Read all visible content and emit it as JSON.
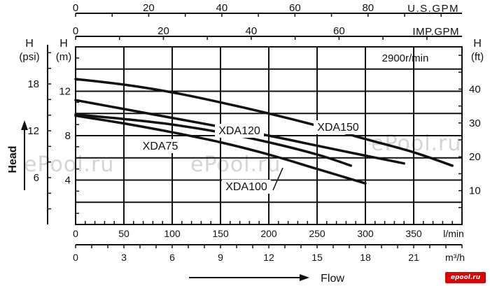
{
  "watermarks": [
    "ePool.ru",
    "ePool.ru",
    "ePool.ru",
    "ePool.ru"
  ],
  "logo": "epool.ru",
  "chart_data": {
    "type": "line",
    "speed_label": "2900r/min",
    "y_title": "Head",
    "x_title": "Flow",
    "axes": {
      "lmin": {
        "unit": "l/min",
        "ticks": [
          0,
          50,
          100,
          150,
          200,
          250,
          300,
          350
        ],
        "range": [
          0,
          400
        ]
      },
      "m3h": {
        "unit": "m³/h",
        "ticks": [
          0,
          3,
          6,
          9,
          12,
          15,
          18,
          21
        ],
        "range": [
          0,
          24
        ]
      },
      "usgpm": {
        "unit": "U.S.GPM",
        "ticks": [
          0,
          20,
          40,
          60,
          80
        ],
        "range": [
          0,
          105.7
        ]
      },
      "impgpm": {
        "unit": "IMP.GPM",
        "ticks": [
          0,
          20,
          40,
          60
        ],
        "range": [
          0,
          88
        ]
      },
      "head_m": {
        "label": "H",
        "unit": "(m)",
        "ticks": [
          4,
          8,
          12
        ],
        "range": [
          0,
          16
        ]
      },
      "head_psi": {
        "label": "H",
        "unit": "(psi)",
        "ticks": [
          6,
          12,
          18
        ],
        "range": [
          0,
          22.75
        ]
      },
      "head_ft": {
        "label": "H",
        "unit": "(ft)",
        "ticks": [
          10,
          20,
          30,
          40
        ],
        "range": [
          0,
          52.5
        ]
      }
    },
    "series": [
      {
        "name": "XDA150",
        "x": [
          0,
          50,
          100,
          150,
          200,
          250,
          300,
          350,
          390
        ],
        "y": [
          13.1,
          12.6,
          11.9,
          11.0,
          10.0,
          8.9,
          7.7,
          6.5,
          5.3
        ]
      },
      {
        "name": "XDA120",
        "x": [
          0,
          50,
          100,
          150,
          200,
          250,
          300,
          340
        ],
        "y": [
          11.2,
          10.4,
          9.6,
          8.8,
          8.0,
          7.1,
          6.2,
          5.5
        ]
      },
      {
        "name": "XDA100",
        "x": [
          0,
          50,
          100,
          150,
          200,
          250,
          285
        ],
        "y": [
          9.9,
          9.5,
          9.0,
          8.3,
          7.4,
          6.3,
          5.3
        ]
      },
      {
        "name": "XDA75",
        "x": [
          0,
          50,
          100,
          150,
          200,
          250,
          300
        ],
        "y": [
          9.8,
          9.1,
          8.3,
          7.4,
          6.3,
          5.0,
          3.7
        ]
      }
    ],
    "annotations": [
      "XDA150",
      "XDA120",
      "XDA100",
      "XDA75"
    ]
  }
}
